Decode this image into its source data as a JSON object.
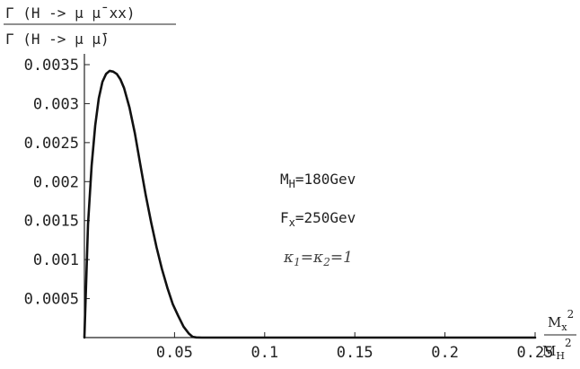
{
  "chart_data": {
    "type": "line",
    "ylabel": {
      "numerator": "Γ (H -> μ μ̄ xx)",
      "denominator": "Γ (H -> μ μ̄)"
    },
    "xlabel": {
      "numerator_base": "M",
      "numerator_sub": "x",
      "numerator_sup": "2",
      "denominator_base": "M",
      "denominator_sub": "H",
      "denominator_sup": "2"
    },
    "xlim": [
      0,
      0.25
    ],
    "ylim": [
      0,
      0.0035
    ],
    "xticks": [
      0.05,
      0.1,
      0.15,
      0.2,
      0.25
    ],
    "xtick_labels": [
      "0.05",
      "0.1",
      "0.15",
      "0.2",
      "0.25"
    ],
    "yticks": [
      0.0005,
      0.001,
      0.0015,
      0.002,
      0.0025,
      0.003,
      0.0035
    ],
    "ytick_labels": [
      "0.0005",
      "0.001",
      "0.0015",
      "0.002",
      "0.0025",
      "0.003",
      "0.0035"
    ],
    "grid": false,
    "annotations": [
      {
        "base": "M",
        "sub": "H",
        "rest": "=180Gev"
      },
      {
        "base": "F",
        "sub": "x",
        "rest": "=250Gev"
      },
      {
        "k1": "κ",
        "k1sub": "1",
        "eq": "=",
        "k2": "κ",
        "k2sub": "2",
        "rest": "=1"
      }
    ],
    "series": [
      {
        "x": [
          0.0,
          0.002,
          0.004,
          0.006,
          0.008,
          0.01,
          0.012,
          0.014,
          0.016,
          0.018,
          0.02,
          0.022,
          0.025,
          0.028,
          0.031,
          0.034,
          0.037,
          0.04,
          0.043,
          0.046,
          0.049,
          0.052,
          0.055,
          0.058,
          0.06,
          0.062,
          0.065,
          0.07,
          0.08,
          0.1,
          0.15,
          0.2,
          0.25
        ],
        "y": [
          0.0,
          0.00145,
          0.0022,
          0.00272,
          0.00307,
          0.00328,
          0.00338,
          0.00342,
          0.00341,
          0.00338,
          0.00331,
          0.0032,
          0.00295,
          0.00262,
          0.00222,
          0.00183,
          0.00148,
          0.00116,
          0.00088,
          0.00064,
          0.00043,
          0.00028,
          0.00014,
          5e-05,
          1e-05,
          2e-06,
          0.0,
          0.0,
          0.0,
          0.0,
          0.0,
          0.0,
          0.0
        ]
      }
    ]
  }
}
